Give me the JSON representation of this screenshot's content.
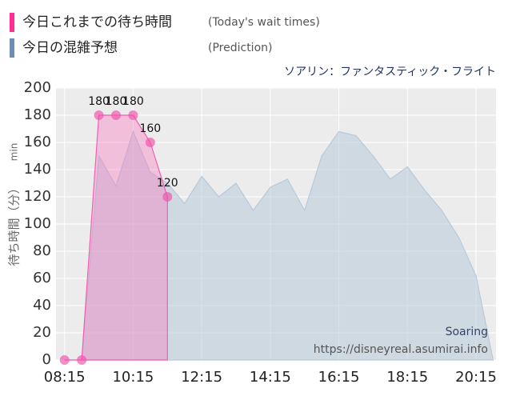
{
  "chart_data": {
    "type": "area",
    "legend": [
      {
        "label": "今日これまでの待ち時間",
        "note": "(Today's wait times)",
        "color": "#ff2d95"
      },
      {
        "label": "今日の混雑予想",
        "note": "(Prediction)",
        "color": "#6f8db5"
      }
    ],
    "title": "ソアリン：ファンタスティック・フライト",
    "ylabel": "待ち時間（分）",
    "yunit": "min",
    "watermark": [
      "Soaring",
      "https://disneyreal.asumirai.info"
    ],
    "xlim": [
      "08:00",
      "20:50"
    ],
    "xticks": [
      "08:15",
      "10:15",
      "12:15",
      "14:15",
      "16:15",
      "18:15",
      "20:15"
    ],
    "ylim": [
      0,
      200
    ],
    "yticks": [
      0,
      20,
      40,
      60,
      80,
      100,
      120,
      140,
      160,
      180,
      200
    ],
    "grid": true,
    "series": [
      {
        "name": "今日の混雑予想",
        "color": "#b8cadb",
        "x": [
          "08:15",
          "08:45",
          "09:15",
          "09:45",
          "10:15",
          "10:45",
          "11:15",
          "11:45",
          "12:15",
          "12:45",
          "13:15",
          "13:45",
          "14:15",
          "14:45",
          "15:15",
          "15:45",
          "16:15",
          "16:45",
          "17:15",
          "17:45",
          "18:15",
          "18:45",
          "19:15",
          "19:45",
          "20:15",
          "20:45"
        ],
        "values": [
          0,
          0,
          150,
          128,
          168,
          138,
          130,
          115,
          135,
          120,
          130,
          110,
          127,
          133,
          110,
          150,
          168,
          165,
          150,
          133,
          142,
          125,
          110,
          90,
          62,
          0
        ]
      },
      {
        "name": "今日これまでの待ち時間",
        "color": "#f060b0",
        "x": [
          "08:15",
          "08:45",
          "09:15",
          "09:45",
          "10:15",
          "10:45",
          "11:15"
        ],
        "values": [
          0,
          0,
          180,
          180,
          180,
          160,
          120
        ]
      }
    ]
  }
}
